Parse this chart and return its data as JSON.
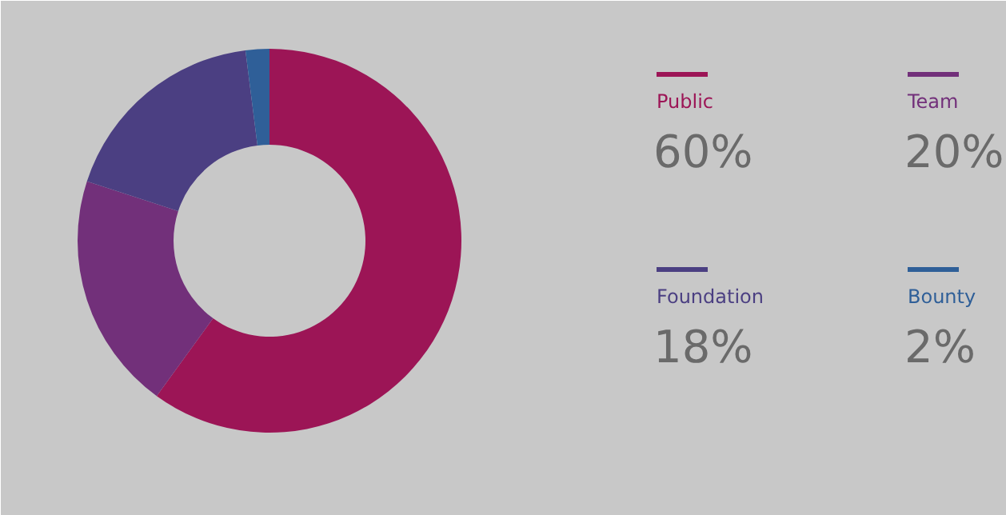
{
  "chart_data": {
    "type": "donut",
    "categories": [
      "Public",
      "Team",
      "Foundation",
      "Bounty"
    ],
    "values": [
      60,
      20,
      18,
      2
    ],
    "colors": [
      "#9c1556",
      "#72307a",
      "#4b3f82",
      "#2f5f98"
    ],
    "value_labels": [
      "60%",
      "20%",
      "18%",
      "2%"
    ],
    "legend": "right"
  }
}
